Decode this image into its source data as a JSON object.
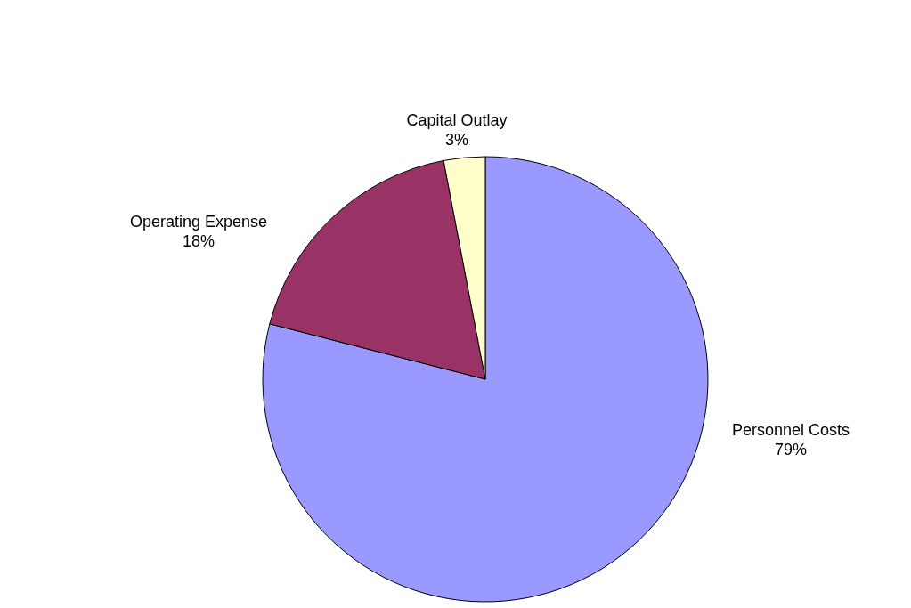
{
  "chart_data": {
    "type": "pie",
    "categories": [
      "Personnel Costs",
      "Operating Expense",
      "Capital Outlay"
    ],
    "values": [
      79,
      18,
      3
    ],
    "value_labels": [
      "79%",
      "18%",
      "3%"
    ],
    "colors": [
      "#9999ff",
      "#993366",
      "#ffffcc"
    ]
  }
}
